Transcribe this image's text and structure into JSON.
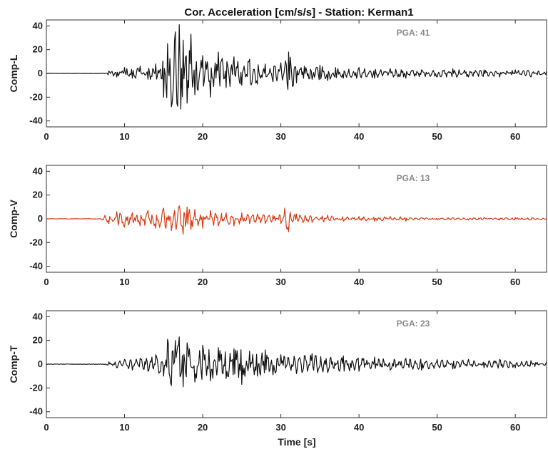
{
  "chart_data": {
    "type": "line",
    "title": "Cor. Acceleration  [cm/s/s] - Station: Kerman1",
    "xlabel": "Time [s]",
    "xlim": [
      0,
      64
    ],
    "x_ticks": [
      0,
      10,
      20,
      30,
      40,
      50,
      60
    ],
    "ylim": [
      -45,
      45
    ],
    "y_ticks": [
      40,
      20,
      0,
      -20,
      -40
    ],
    "grid": false,
    "panels": [
      {
        "ylabel": "Comp-L",
        "annotation": "PGA: 41",
        "pga": 41,
        "color": "#111111",
        "series": {
          "x": [
            0,
            7.5,
            8,
            9,
            10,
            11,
            12,
            13,
            14,
            15,
            15.5,
            16,
            16.5,
            17,
            17.2,
            17.5,
            18,
            18.5,
            19,
            20,
            21,
            22,
            23,
            24,
            25,
            26,
            27,
            28,
            29,
            30,
            31,
            32,
            33,
            34,
            35,
            36,
            37,
            38,
            40,
            42,
            44,
            46,
            48,
            50,
            52,
            54,
            56,
            58,
            60,
            62,
            64
          ],
          "y": [
            0,
            0,
            2,
            -3,
            5,
            -4,
            6,
            -5,
            8,
            -20,
            25,
            -28,
            35,
            41,
            -30,
            28,
            -25,
            33,
            -18,
            15,
            -20,
            18,
            -12,
            14,
            -10,
            12,
            -9,
            8,
            -7,
            9,
            18,
            -8,
            6,
            -5,
            7,
            -6,
            5,
            -4,
            5,
            -4,
            4,
            -4,
            3,
            -3,
            4,
            -3,
            3,
            -3,
            3,
            -3,
            2
          ]
        }
      },
      {
        "ylabel": "Comp-V",
        "annotation": "PGA: 13",
        "pga": 13,
        "color": "#d93a12",
        "series": {
          "x": [
            0,
            7,
            7.5,
            8,
            9,
            10,
            11,
            12,
            13,
            14,
            15,
            16,
            17,
            17.5,
            18,
            18.5,
            19,
            20,
            21,
            22,
            23,
            24,
            25,
            26,
            27,
            28,
            29,
            30,
            30.5,
            31,
            32,
            34,
            36,
            38,
            40,
            42,
            44,
            46,
            48,
            50,
            52,
            54,
            56,
            58,
            60,
            62,
            64
          ],
          "y": [
            0,
            0,
            3,
            -4,
            6,
            -7,
            5,
            -6,
            7,
            -8,
            9,
            -10,
            11,
            -13,
            10,
            -9,
            8,
            -8,
            7,
            -6,
            5,
            -6,
            5,
            -4,
            4,
            -4,
            3,
            -4,
            9,
            -11,
            4,
            -3,
            3,
            -2,
            2,
            -2,
            2,
            -2,
            1,
            -1,
            1,
            -1,
            1,
            -1,
            1,
            -1,
            1
          ]
        }
      },
      {
        "ylabel": "Comp-T",
        "annotation": "PGA: 23",
        "pga": 23,
        "color": "#111111",
        "series": {
          "x": [
            0,
            7.5,
            8,
            9,
            10,
            11,
            12,
            13,
            14,
            15,
            15.5,
            16,
            16.5,
            17,
            17.5,
            18,
            19,
            20,
            21,
            22,
            23,
            24,
            25,
            26,
            27,
            28,
            29,
            30,
            32,
            34,
            36,
            38,
            40,
            42,
            44,
            46,
            48,
            50,
            52,
            54,
            56,
            58,
            60,
            62,
            64
          ],
          "y": [
            0,
            0,
            2,
            -3,
            4,
            -5,
            5,
            -6,
            8,
            -10,
            21,
            -18,
            20,
            23,
            -19,
            18,
            -15,
            16,
            -14,
            14,
            -12,
            13,
            -17,
            11,
            -10,
            12,
            -9,
            8,
            -8,
            9,
            -7,
            7,
            -6,
            6,
            -5,
            5,
            -5,
            4,
            -4,
            4,
            -3,
            4,
            -3,
            3,
            2
          ]
        }
      }
    ]
  }
}
